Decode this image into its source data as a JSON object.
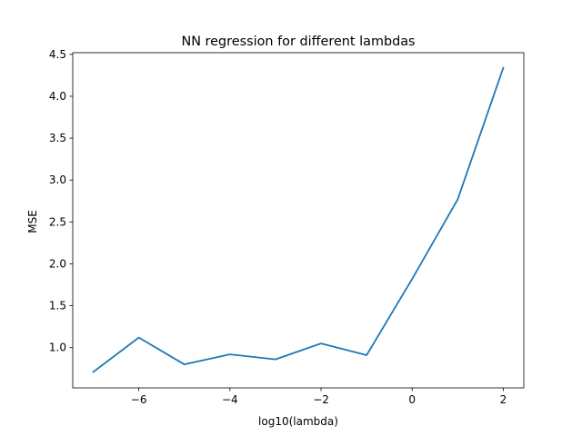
{
  "chart_data": {
    "type": "line",
    "title": "NN regression for different lambdas",
    "xlabel": "log10(lambda)",
    "ylabel": "MSE",
    "xlim": [
      -7.45,
      2.45
    ],
    "ylim": [
      0.52,
      4.52
    ],
    "xticks": [
      -6,
      -4,
      -2,
      0,
      2
    ],
    "xtick_labels": [
      "−6",
      "−4",
      "−2",
      "0",
      "2"
    ],
    "yticks": [
      1.0,
      1.5,
      2.0,
      2.5,
      3.0,
      3.5,
      4.0,
      4.5
    ],
    "ytick_labels": [
      "1.0",
      "1.5",
      "2.0",
      "2.5",
      "3.0",
      "3.5",
      "4.0",
      "4.5"
    ],
    "grid": false,
    "line_color": "#1f77b4",
    "series": [
      {
        "x": [
          -7,
          -6,
          -5,
          -4,
          -3,
          -2,
          -1,
          0,
          1,
          2
        ],
        "y": [
          0.71,
          1.12,
          0.8,
          0.92,
          0.86,
          1.05,
          0.91,
          1.82,
          2.77,
          4.34
        ]
      }
    ]
  }
}
